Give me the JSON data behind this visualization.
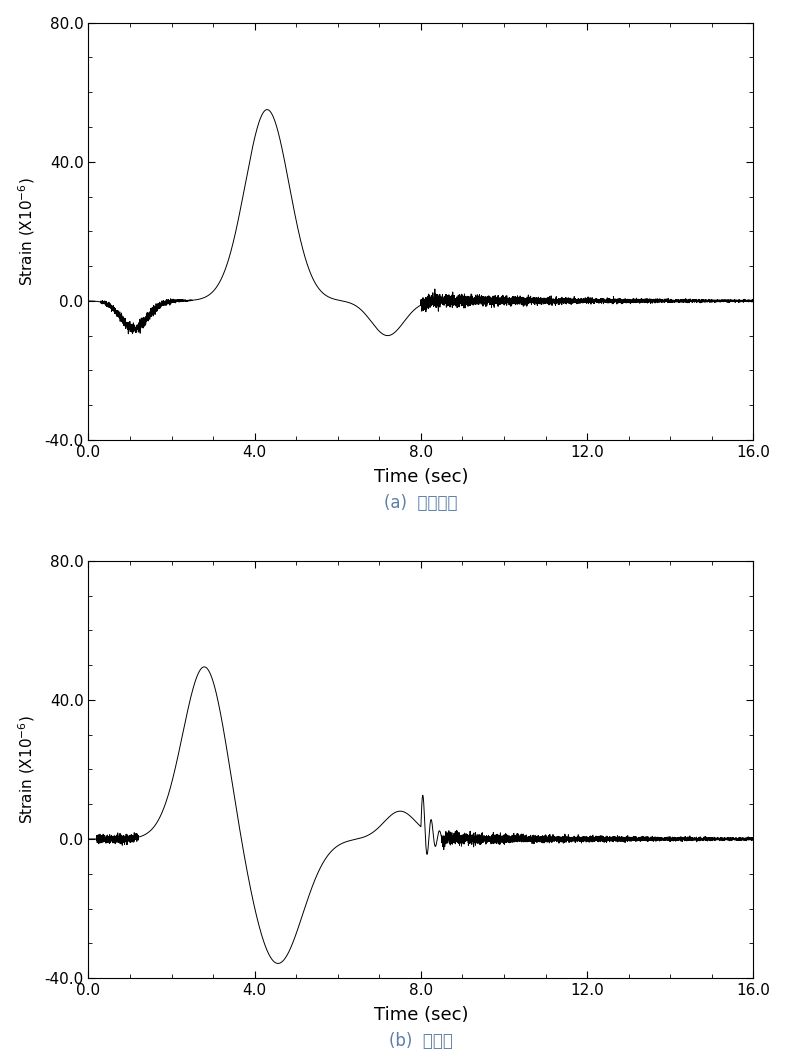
{
  "subplot_a": {
    "label": "(a)  중앙경간",
    "label_color": "#5B7FA6"
  },
  "subplot_b": {
    "label": "(b)  측경간",
    "label_color": "#5B7FA6"
  },
  "xlim": [
    0.0,
    16.0
  ],
  "ylim": [
    -40.0,
    80.0
  ],
  "xticks": [
    0.0,
    4.0,
    8.0,
    12.0,
    16.0
  ],
  "yticks": [
    -40.0,
    0.0,
    40.0,
    80.0
  ],
  "xlabel": "Time (sec)",
  "ylabel": "Strain (X10",
  "line_color": "#000000",
  "line_width": 0.7,
  "bg_color": "#ffffff",
  "fig_width": 7.87,
  "fig_height": 10.61
}
